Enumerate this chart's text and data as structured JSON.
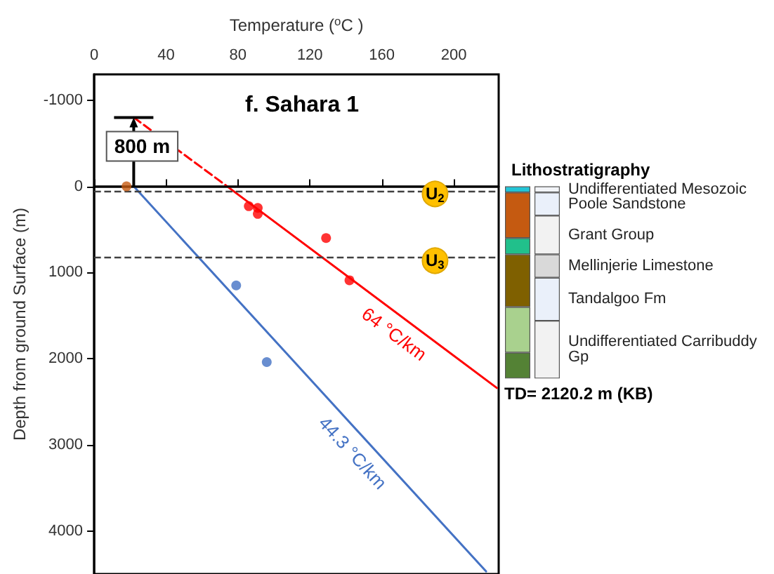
{
  "chart_data": [
    {
      "type": "scatter",
      "title": "f. Sahara 1",
      "xlabel": "Temperature ($^{o}$C )",
      "ylabel": "Depth from ground Surface (m)",
      "xlim": [
        0,
        225
      ],
      "xticks": [
        0,
        40,
        80,
        120,
        160,
        200
      ],
      "ylim": [
        4500,
        -1300
      ],
      "yticks": [
        -1000,
        0,
        1000,
        2000,
        3000,
        4000
      ],
      "marker": "circle",
      "series": [
        {
          "type": "line",
          "line_style": "dashed",
          "marker": "none",
          "color": "#ff0000",
          "x": [
            22,
            74
          ],
          "values": [
            -800,
            0
          ]
        },
        {
          "type": "line",
          "name": "64 °C/km",
          "line_style": "solid",
          "marker": "none",
          "color": "#ff0000",
          "x": [
            74,
            224
          ],
          "values": [
            0,
            2340
          ]
        },
        {
          "type": "line",
          "name": "44.3 °C/km",
          "line_style": "solid",
          "marker": "none",
          "color": "#4472c4",
          "x": [
            22,
            218
          ],
          "values": [
            0,
            4470
          ]
        },
        {
          "color": "#c55a11",
          "x": [
            18
          ],
          "values": [
            0
          ]
        },
        {
          "color": "#ff0000",
          "x": [
            86,
            91,
            91,
            129,
            142
          ],
          "values": [
            230,
            250,
            320,
            600,
            1090
          ]
        },
        {
          "color": "#4472c4",
          "x": [
            79,
            96
          ],
          "values": [
            1150,
            2040
          ]
        }
      ],
      "ref_lines": [
        {
          "axis": "y",
          "value": 0,
          "label": null,
          "color": "#000000",
          "line_style": "solid"
        },
        {
          "axis": "y",
          "value": 55,
          "label": "U$_{2}$",
          "color": "#404040",
          "line_style": "dashed"
        },
        {
          "axis": "y",
          "value": 830,
          "label": "U$_{3}$",
          "color": "#404040",
          "line_style": "dashed"
        }
      ],
      "annotations": [
        "800 m"
      ]
    },
    {
      "type": "bar",
      "stacked": true,
      "title": "Lithostratigraphy",
      "categories": [
        null,
        null
      ],
      "ylim": [
        4500,
        -1300
      ],
      "tick_labels": false,
      "annotations": [
        "TD= 2120.2 m (KB)"
      ],
      "series": [
        {
          "color": "#22c4d6",
          "values": [
            70,
            null
          ]
        },
        {
          "color": "#c55a11",
          "values": [
            530,
            null
          ]
        },
        {
          "color": "#21c08b",
          "values": [
            190,
            null
          ]
        },
        {
          "color": "#7f6000",
          "values": [
            610,
            null
          ]
        },
        {
          "color": "#a9d18e",
          "values": [
            530,
            null
          ]
        },
        {
          "color": "#548235",
          "values": [
            300,
            null
          ]
        },
        {
          "name": "Undifferentiated Mesozoic",
          "color": "#f2f4f8",
          "values": [
            null,
            70
          ]
        },
        {
          "name": "Poole Sandstone",
          "color": "#eaf0fa",
          "values": [
            null,
            270
          ]
        },
        {
          "name": "Grant Group",
          "color": "#f2f2f2",
          "values": [
            null,
            450
          ]
        },
        {
          "name": "Mellinjerie Limestone",
          "color": "#d9d9d9",
          "values": [
            null,
            270
          ]
        },
        {
          "name": "Tandalgoo Fm",
          "color": "#eaf0fa",
          "values": [
            null,
            500
          ]
        },
        {
          "name": "Undifferentiated Carribuddy Gp",
          "color": "#f2f2f2",
          "values": [
            null,
            670
          ]
        }
      ]
    }
  ]
}
